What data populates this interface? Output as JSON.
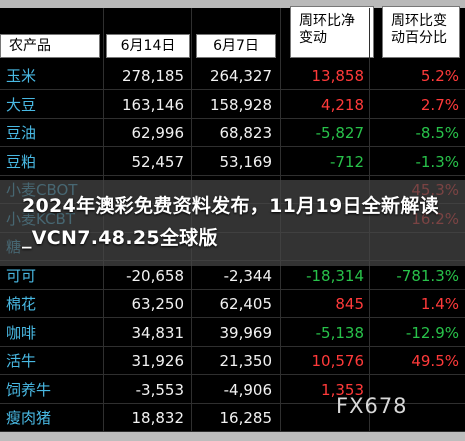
{
  "table": {
    "headers": {
      "product": "农产品",
      "date1": "6月14日",
      "date2": "6月7日",
      "change_line1": "周环比净",
      "change_line2": "变动",
      "pct_line1": "周环比变",
      "pct_line2": "动百分比"
    },
    "rows": [
      {
        "name": "玉米",
        "v1": "278,185",
        "v2": "264,327",
        "chg": "13,858",
        "pct": "5.2%"
      },
      {
        "name": "大豆",
        "v1": "163,146",
        "v2": "158,928",
        "chg": "4,218",
        "pct": "2.7%"
      },
      {
        "name": "豆油",
        "v1": "62,996",
        "v2": "68,823",
        "chg": "-5,827",
        "pct": "-8.5%"
      },
      {
        "name": "豆粕",
        "v1": "52,457",
        "v2": "53,169",
        "chg": "-712",
        "pct": "-1.3%"
      },
      {
        "name": "小麦CBOT",
        "v1": "",
        "v2": "",
        "chg": "",
        "pct": "45.3%"
      },
      {
        "name": "小麦KCBT",
        "v1": "",
        "v2": "",
        "chg": "",
        "pct": "16.2%"
      },
      {
        "name": "糖",
        "v1": "",
        "v2": "",
        "chg": "",
        "pct": ""
      },
      {
        "name": "可可",
        "v1": "-20,658",
        "v2": "-2,344",
        "chg": "-18,314",
        "pct": "-781.3%"
      },
      {
        "name": "棉花",
        "v1": "63,250",
        "v2": "62,405",
        "chg": "845",
        "pct": "1.4%"
      },
      {
        "name": "咖啡",
        "v1": "34,831",
        "v2": "39,969",
        "chg": "-5,138",
        "pct": "-12.9%"
      },
      {
        "name": "活牛",
        "v1": "31,926",
        "v2": "21,350",
        "chg": "10,576",
        "pct": "49.5%"
      },
      {
        "name": "饲养牛",
        "v1": "-3,553",
        "v2": "-4,906",
        "chg": "1,353",
        "pct": ""
      },
      {
        "name": "瘦肉猪",
        "v1": "18,832",
        "v2": "16,285",
        "chg": "",
        "pct": ""
      }
    ]
  },
  "overlay": {
    "headline": "2024年澳彩免费资料发布，11月19日全新解读_VCN7.48.25全球版"
  },
  "watermark": "FX678",
  "colors": {
    "positive": "#ff3a3a",
    "negative": "#28c24a",
    "name_text": "#49b9e3",
    "background": "#000000"
  }
}
